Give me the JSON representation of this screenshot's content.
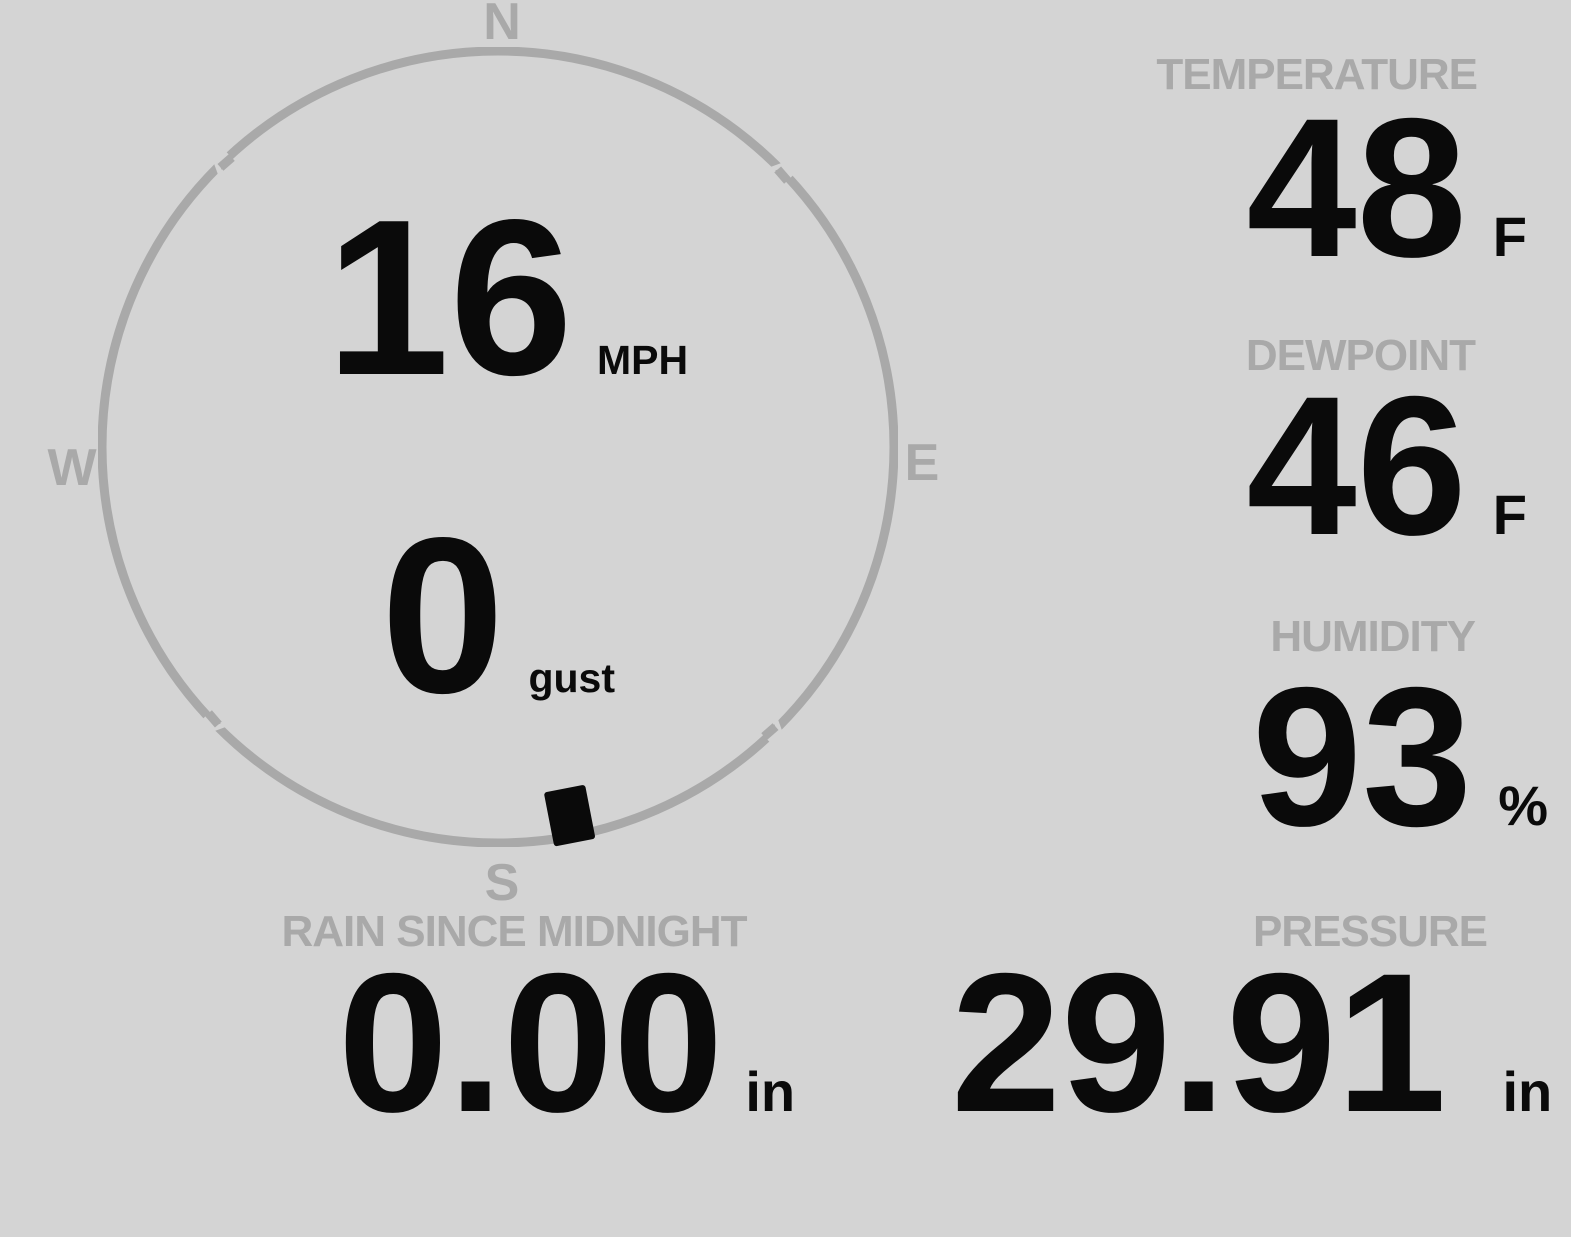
{
  "theme": {
    "background": "#d4d4d4",
    "muted_gray": "#a9a9a9",
    "ink_black": "#0a0a0a"
  },
  "compass": {
    "north_label": "N",
    "east_label": "E",
    "south_label": "S",
    "west_label": "W",
    "wind_speed_value": "16",
    "wind_speed_unit": "MPH",
    "wind_gust_value": "0",
    "wind_gust_unit": "gust",
    "wind_direction_deg": 169
  },
  "metrics": {
    "temperature": {
      "label": "TEMPERATURE",
      "value": "48",
      "unit": "F"
    },
    "dewpoint": {
      "label": "DEWPOINT",
      "value": "46",
      "unit": "F"
    },
    "humidity": {
      "label": "HUMIDITY",
      "value": "93",
      "unit": "%"
    },
    "rain_since_midnight": {
      "label": "RAIN SINCE MIDNIGHT",
      "value": "0.00",
      "unit": "in"
    },
    "pressure": {
      "label": "PRESSURE",
      "value": "29.91",
      "unit": "in"
    }
  }
}
